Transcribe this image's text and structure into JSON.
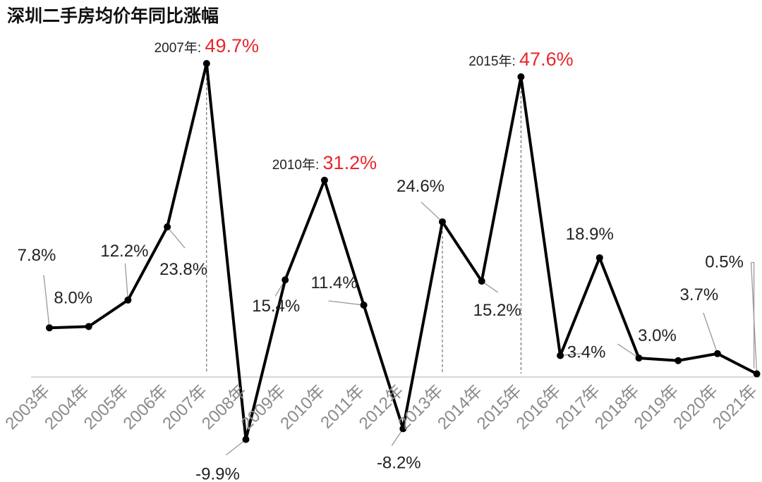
{
  "chart_data": {
    "type": "line",
    "title": "深圳二手房均价年同比涨幅",
    "x": [
      "2003年",
      "2004年",
      "2005年",
      "2006年",
      "2007年",
      "2008年",
      "2009年",
      "2010年",
      "2011年",
      "2012年",
      "2013年",
      "2014年",
      "2015年",
      "2016年",
      "2017年",
      "2018年",
      "2019年",
      "2020年",
      "2021年"
    ],
    "values": [
      7.8,
      8.0,
      12.2,
      23.8,
      49.7,
      -9.9,
      15.4,
      31.2,
      11.4,
      -8.2,
      24.6,
      15.2,
      47.6,
      3.4,
      18.9,
      3.0,
      2.6,
      3.7,
      0.5
    ],
    "data_labels": [
      "7.8%",
      "8.0%",
      "12.2%",
      "23.8%",
      "49.7%",
      "-9.9%",
      "15.4%",
      "31.2%",
      "11.4%",
      "-8.2%",
      "24.6%",
      "15.2%",
      "47.6%",
      "3.4%",
      "18.9%",
      "3.0%",
      "",
      "3.7%",
      "0.5%"
    ],
    "highlights": [
      {
        "index": 4,
        "year_text": "2007年:",
        "value_text": "49.7%"
      },
      {
        "index": 7,
        "year_text": "2010年:",
        "value_text": "31.2%"
      },
      {
        "index": 12,
        "year_text": "2015年:",
        "value_text": "47.6%"
      }
    ],
    "colors": {
      "line": "#000000",
      "highlight": "#e8262b",
      "tick": "#8a8a8a",
      "axis": "#cccccc"
    }
  }
}
